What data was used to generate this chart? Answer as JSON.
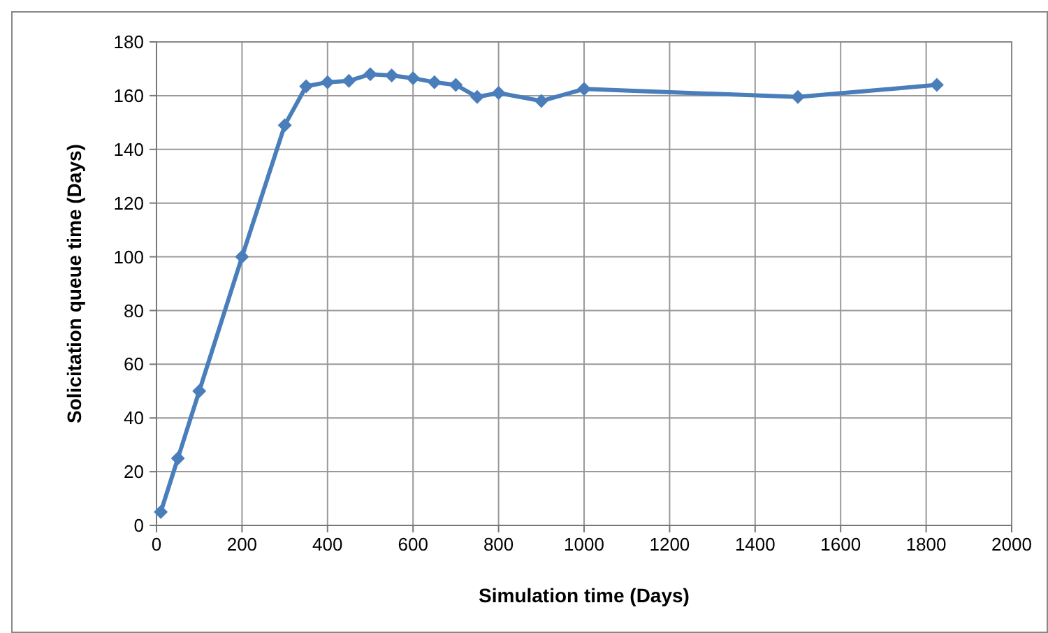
{
  "chart_data": {
    "type": "line",
    "xlabel": "Simulation time (Days)",
    "ylabel": "Solicitation queue time (Days)",
    "x": [
      10,
      50,
      100,
      200,
      300,
      350,
      400,
      450,
      500,
      550,
      600,
      650,
      700,
      750,
      800,
      900,
      1000,
      1500,
      1825
    ],
    "series": [
      {
        "color": "#4a7ebb",
        "values": [
          5,
          25,
          50,
          100,
          149,
          163.5,
          165,
          165.5,
          168,
          167.5,
          166.5,
          165,
          164,
          159.5,
          161,
          158,
          162.5,
          159.5,
          164
        ]
      }
    ],
    "xlim": [
      0,
      2000
    ],
    "xticks": [
      0,
      200,
      400,
      600,
      800,
      1000,
      1200,
      1400,
      1600,
      1800,
      2000
    ],
    "ylim": [
      0,
      180
    ],
    "yticks": [
      0,
      20,
      40,
      60,
      80,
      100,
      120,
      140,
      160,
      180
    ],
    "grid": true,
    "marker": "diamond",
    "line_style": "solid"
  }
}
